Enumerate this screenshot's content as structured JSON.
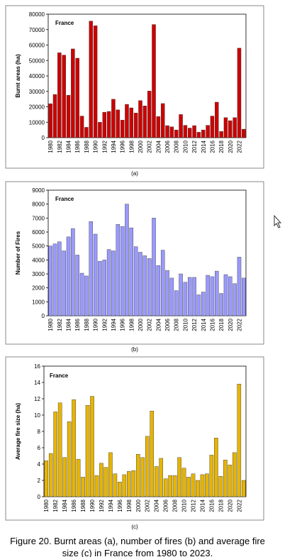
{
  "chart_data": [
    {
      "type": "bar",
      "panel_label": "(a)",
      "annotation": "France",
      "ylabel": "Burnt areas (ha)",
      "color": "#cc0000",
      "categories": [
        "1980",
        null,
        "1982",
        null,
        "1984",
        null,
        "1986",
        null,
        "1988",
        null,
        "1990",
        null,
        "1992",
        null,
        "1994",
        null,
        "1996",
        null,
        "1998",
        null,
        "2000",
        null,
        "2002",
        null,
        "2004",
        null,
        "2006",
        null,
        "2008",
        null,
        "2010",
        null,
        "2012",
        null,
        "2014",
        null,
        "2016",
        null,
        "2018",
        null,
        "2020",
        null,
        "2022",
        null
      ],
      "values": [
        22000,
        28000,
        55000,
        53500,
        27500,
        57500,
        51500,
        14000,
        6700,
        75500,
        72500,
        10000,
        16500,
        17000,
        24900,
        18000,
        11400,
        21600,
        19300,
        16000,
        24000,
        20600,
        30200,
        73300,
        13700,
        22100,
        7800,
        7000,
        5000,
        15000,
        8000,
        6200,
        7800,
        3500,
        5000,
        8000,
        14000,
        23000,
        4000,
        13000,
        11000,
        13000,
        58000,
        5500
      ],
      "ylim": [
        0,
        80000
      ],
      "yticks": [
        0,
        10000,
        20000,
        30000,
        40000,
        50000,
        60000,
        70000,
        80000
      ]
    },
    {
      "type": "bar",
      "panel_label": "(b)",
      "annotation": "France",
      "ylabel": "Number of Fires",
      "color": "#9999ff",
      "categories": [
        "1980",
        null,
        "1982",
        null,
        "1984",
        null,
        "1986",
        null,
        "1988",
        null,
        "1990",
        null,
        "1992",
        null,
        "1994",
        null,
        "1996",
        null,
        "1998",
        null,
        "2000",
        null,
        "2002",
        null,
        "2004",
        null,
        "2006",
        null,
        "2008",
        null,
        "2010",
        null,
        "2012",
        null,
        "2014",
        null,
        "2016",
        null,
        "2018",
        null,
        "2020",
        null,
        "2022",
        null
      ],
      "values": [
        5000,
        5150,
        5300,
        4650,
        5650,
        6250,
        4350,
        3050,
        2850,
        6750,
        5850,
        3900,
        4000,
        4750,
        4650,
        6550,
        6400,
        8000,
        6300,
        4950,
        4550,
        4300,
        4100,
        7000,
        3600,
        4700,
        3250,
        2700,
        1800,
        3000,
        2400,
        2750,
        2750,
        1500,
        1700,
        2900,
        2800,
        3200,
        1600,
        2950,
        2800,
        2300,
        4200,
        2700
      ],
      "ylim": [
        0,
        9000
      ],
      "yticks": [
        0,
        1000,
        2000,
        3000,
        4000,
        5000,
        6000,
        7000,
        8000,
        9000
      ]
    },
    {
      "type": "bar",
      "panel_label": "(c)",
      "annotation": "France",
      "ylabel": "Average fire size (ha)",
      "color": "#e6b400",
      "categories": [
        "1980",
        null,
        "1982",
        null,
        "1984",
        null,
        "1986",
        null,
        "1988",
        null,
        "1990",
        null,
        "1992",
        null,
        "1994",
        null,
        "1996",
        null,
        "1998",
        null,
        "2000",
        null,
        "2002",
        null,
        "2004",
        null,
        "2006",
        null,
        "2008",
        null,
        "2010",
        null,
        "2012",
        null,
        "2014",
        null,
        "2016",
        null,
        "2018",
        null,
        "2020",
        null,
        "2022",
        null
      ],
      "values": [
        4.4,
        5.3,
        10.4,
        11.5,
        4.8,
        9.2,
        11.9,
        4.6,
        2.4,
        11.2,
        12.3,
        2.6,
        4.1,
        3.6,
        5.4,
        2.8,
        1.8,
        2.7,
        3.1,
        3.2,
        5.2,
        4.8,
        7.4,
        10.5,
        3.7,
        4.7,
        2.2,
        2.6,
        2.6,
        4.8,
        3.5,
        2.4,
        2.8,
        2.0,
        2.7,
        2.8,
        5.1,
        7.2,
        2.5,
        4.5,
        3.9,
        5.4,
        13.8,
        2.0
      ],
      "ylim": [
        0,
        16
      ],
      "yticks": [
        0,
        2,
        4,
        6,
        8,
        10,
        12,
        14,
        16
      ]
    }
  ],
  "caption": "Figure 20. Burnt areas (a), number of fires (b) and average fire size (c) in France from 1980 to 2023."
}
